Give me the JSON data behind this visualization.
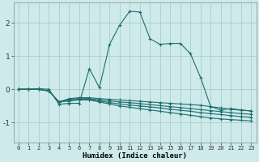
{
  "xlabel": "Humidex (Indice chaleur)",
  "background_color": "#ceeaea",
  "grid_color": "#a8cece",
  "line_color": "#1e6e6e",
  "xlim": [
    -0.5,
    23.5
  ],
  "ylim": [
    -1.6,
    2.6
  ],
  "xtick_labels": [
    "0",
    "1",
    "2",
    "3",
    "4",
    "5",
    "6",
    "7",
    "8",
    "9",
    "10",
    "11",
    "12",
    "13",
    "14",
    "15",
    "16",
    "17",
    "18",
    "19",
    "20",
    "21",
    "22",
    "23"
  ],
  "ytick_values": [
    -1,
    0,
    1,
    2
  ],
  "series": [
    [
      0.0,
      0.0,
      0.02,
      0.0,
      -0.45,
      -0.42,
      -0.42,
      0.62,
      0.05,
      1.35,
      1.93,
      2.35,
      2.32,
      1.52,
      1.35,
      1.38,
      1.38,
      1.07,
      0.35,
      -0.52,
      -0.62,
      -0.58,
      -0.62,
      -0.65
    ],
    [
      0.0,
      0.0,
      0.0,
      -0.05,
      -0.38,
      -0.28,
      -0.25,
      -0.25,
      -0.28,
      -0.3,
      -0.32,
      -0.34,
      -0.36,
      -0.38,
      -0.4,
      -0.42,
      -0.44,
      -0.46,
      -0.48,
      -0.52,
      -0.56,
      -0.6,
      -0.63,
      -0.65
    ],
    [
      0.0,
      0.0,
      0.0,
      -0.05,
      -0.38,
      -0.3,
      -0.28,
      -0.28,
      -0.32,
      -0.35,
      -0.38,
      -0.4,
      -0.43,
      -0.46,
      -0.49,
      -0.52,
      -0.55,
      -0.58,
      -0.61,
      -0.64,
      -0.67,
      -0.7,
      -0.73,
      -0.75
    ],
    [
      0.0,
      0.0,
      0.0,
      -0.05,
      -0.38,
      -0.32,
      -0.3,
      -0.3,
      -0.35,
      -0.4,
      -0.44,
      -0.47,
      -0.5,
      -0.53,
      -0.56,
      -0.6,
      -0.63,
      -0.66,
      -0.7,
      -0.73,
      -0.76,
      -0.79,
      -0.82,
      -0.84
    ],
    [
      0.0,
      0.0,
      0.0,
      -0.05,
      -0.38,
      -0.35,
      -0.32,
      -0.32,
      -0.38,
      -0.44,
      -0.5,
      -0.54,
      -0.58,
      -0.62,
      -0.66,
      -0.7,
      -0.74,
      -0.78,
      -0.82,
      -0.86,
      -0.89,
      -0.91,
      -0.93,
      -0.95
    ]
  ]
}
